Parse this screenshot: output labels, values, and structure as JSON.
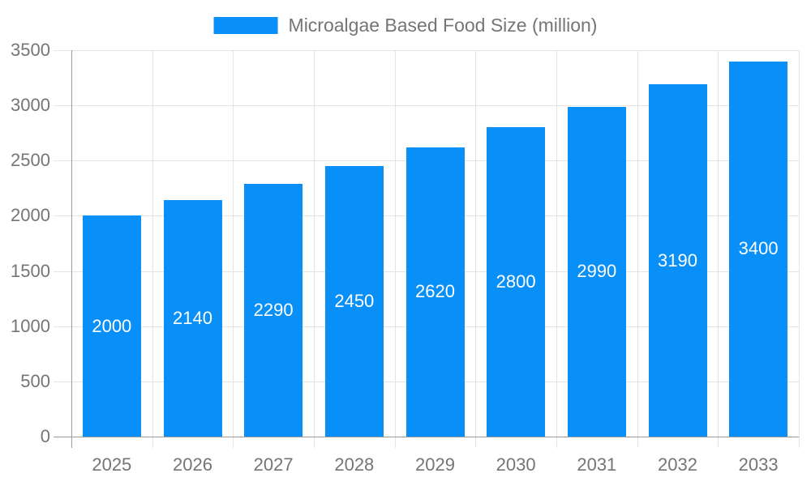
{
  "legend": {
    "label": "Microalgae Based Food Size (million)"
  },
  "chart_data": {
    "type": "bar",
    "title": "Microalgae Based Food Size (million)",
    "series_name": "Microalgae Based Food Size (million)",
    "categories": [
      "2025",
      "2026",
      "2027",
      "2028",
      "2029",
      "2030",
      "2031",
      "2032",
      "2033"
    ],
    "values": [
      2000,
      2140,
      2290,
      2450,
      2620,
      2800,
      2990,
      3190,
      3400
    ],
    "value_labels": [
      "2000",
      "2140",
      "2290",
      "2450",
      "2620",
      "2800",
      "2990",
      "3190",
      "3400"
    ],
    "xlabel": "",
    "ylabel": "",
    "ylim": [
      0,
      3500
    ],
    "yticks": [
      0,
      500,
      1000,
      1500,
      2000,
      2500,
      3000,
      3500
    ],
    "grid": true,
    "legend_position": "top",
    "value_label_position": "inside-center"
  },
  "colors": {
    "bar": "#0890F8",
    "grid": "#e4e4e4",
    "axis": "#9b9b9b",
    "text": "#757575",
    "bar_label": "#ffffff",
    "background": "#ffffff"
  }
}
